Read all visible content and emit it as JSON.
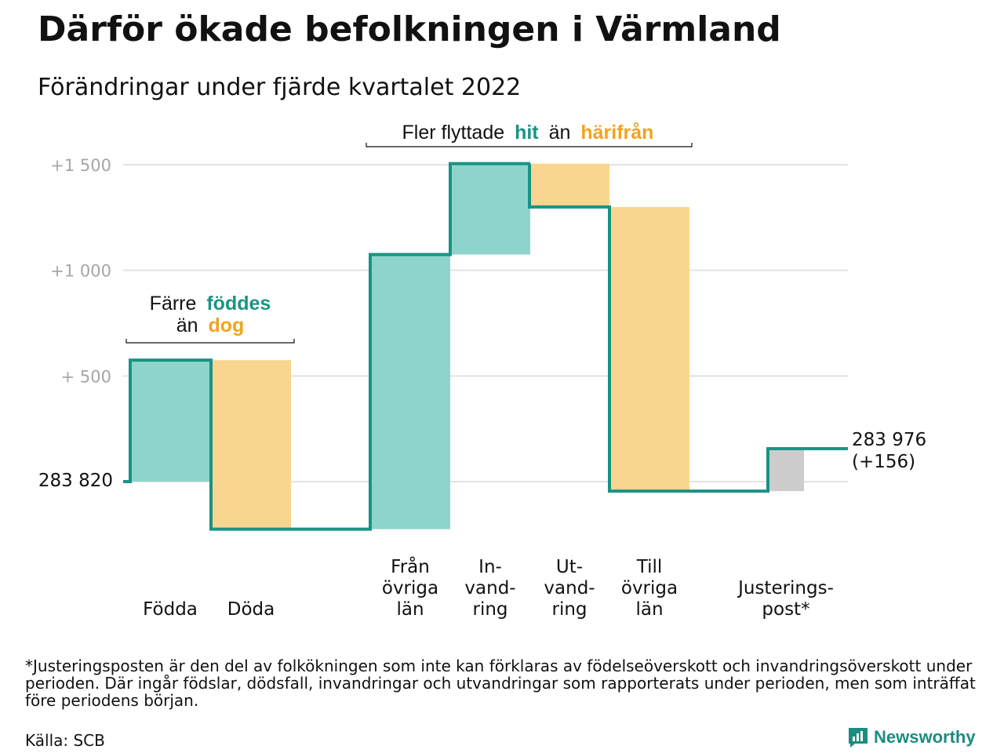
{
  "title": "Därför ökade befolkningen i Värmland",
  "subtitle": "Förändringar under fjärde kvartalet 2022",
  "colors": {
    "teal": "#1a9384",
    "teal_light": "#8dd5cc",
    "orange": "#f2a320",
    "orange_light": "#fad58f",
    "gray": "#cccccc",
    "axis_text": "#a6a6a6",
    "grid": "#e3e3e3"
  },
  "chart_data": {
    "type": "waterfall",
    "start_value": 283820,
    "start_label": "283 820",
    "end_label": "283 976",
    "end_change_label": "(+156)",
    "y_axis": {
      "min": -230,
      "max": 1500,
      "ticks": [
        {
          "value": 500,
          "label": "+ 500"
        },
        {
          "value": 1000,
          "label": "+1 000"
        },
        {
          "value": 1500,
          "label": "+1 500"
        }
      ]
    },
    "steps": [
      {
        "id": "fodda",
        "label": [
          "Födda"
        ],
        "change": 575,
        "kind": "in"
      },
      {
        "id": "doda",
        "label": [
          "Döda"
        ],
        "change": -800,
        "kind": "out"
      },
      {
        "id": "fran-ovriga-lan",
        "label": [
          "Från",
          "övriga",
          "län"
        ],
        "change": 1300,
        "kind": "in"
      },
      {
        "id": "invandring",
        "label": [
          "In-",
          "vand-",
          "ring"
        ],
        "change": 430,
        "kind": "in"
      },
      {
        "id": "utvandring",
        "label": [
          "Ut-",
          "vand-",
          "ring"
        ],
        "change": -205,
        "kind": "out"
      },
      {
        "id": "till-ovriga-lan",
        "label": [
          "Till",
          "övriga",
          "län"
        ],
        "change": -1345,
        "kind": "out"
      },
      {
        "id": "justeringspost",
        "label": [
          "Justerings-",
          "post*"
        ],
        "change": 201,
        "kind": "adjust"
      }
    ],
    "annotations": {
      "births": {
        "prefix": "Färre",
        "word1": "föddes",
        "middle": "än",
        "word2": "dog"
      },
      "migration": {
        "prefix": "Fler flyttade",
        "word1": "hit",
        "middle": "än",
        "word2": "härifrån"
      }
    }
  },
  "note": "*Justeringsposten är den del av folkökningen som inte kan förklaras av födelseöverskott och invandringsöverskott under perioden. Där ingår födslar, dödsfall, invandringar och utvandringar som rapporterats under perioden, men som inträffat före periodens början.",
  "source": "Källa: SCB",
  "brand": "Newsworthy"
}
